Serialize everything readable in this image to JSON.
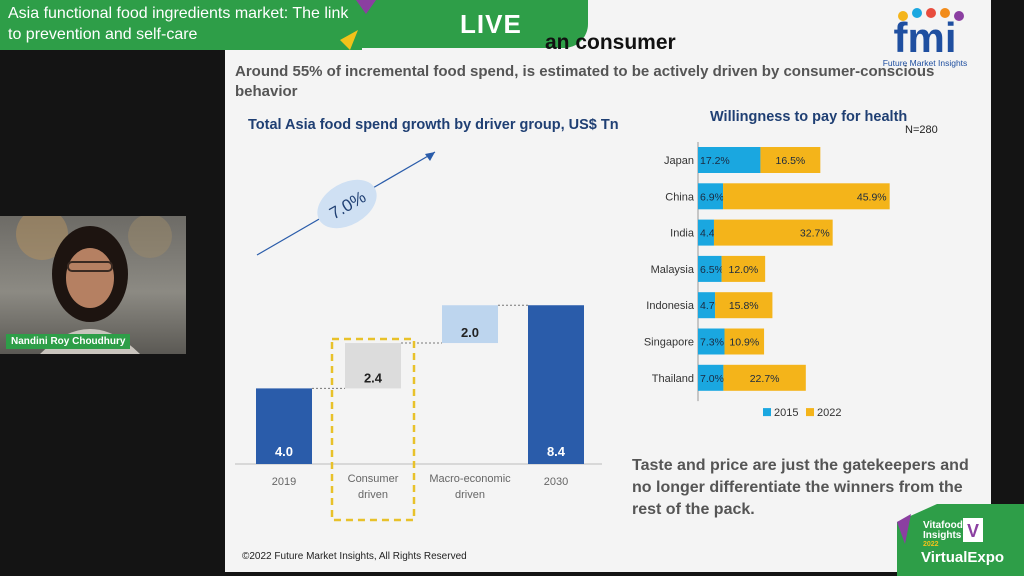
{
  "stream": {
    "title": "Asia functional food ingredients market: The link to prevention and self-care",
    "live_label": "LIVE",
    "presenter_name": "Nandini Roy Choudhury"
  },
  "slide": {
    "heading_visible": "an consumer",
    "subtitle": "Around 55% of incremental food spend, is estimated to be actively driven by consumer-conscious behavior",
    "logo_text": "fmi",
    "logo_subtext": "Future Market Insights",
    "takeaway": "Taste and price are just the gatekeepers and no longer differentiate the winners from the rest of the pack.",
    "copyright": "©2022 Future Market Insights, All Rights Reserved",
    "sponsor": {
      "line1": "Vitafoods",
      "line2": "Insights",
      "line3": "2022",
      "line4": "VirtualExpo"
    }
  },
  "colors": {
    "banner_green": "#2e9e48",
    "bar_blue": "#2a5caa",
    "light_blue": "#bdd5ee",
    "gray_bar": "#dcdcdc",
    "highlight_yellow": "#e8c12a",
    "series_2015": "#1aa7e0",
    "series_2022": "#f4b41a",
    "title_navy": "#1f3f73"
  },
  "chart_data": [
    {
      "type": "bar",
      "subtype": "waterfall",
      "title": "Total Asia food spend growth by driver group, US$ Tn",
      "categories": [
        "2019",
        "Consumer driven",
        "Macro-economic driven",
        "2030"
      ],
      "values": [
        4.0,
        2.4,
        2.0,
        8.4
      ],
      "value_labels": [
        "4.0",
        "2.4",
        "2.0",
        "8.4"
      ],
      "kinds": [
        "total",
        "increment",
        "increment",
        "total"
      ],
      "annotation": "7.0%",
      "highlight_category": "Consumer driven",
      "ylim": [
        0,
        9
      ]
    },
    {
      "type": "bar",
      "subtype": "horizontal-stacked",
      "title": "Willingness to pay for health",
      "note": "N=280",
      "categories": [
        "Japan",
        "China",
        "India",
        "Malaysia",
        "Indonesia",
        "Singapore",
        "Thailand"
      ],
      "series": [
        {
          "name": "2015",
          "values": [
            17.2,
            6.9,
            4.4,
            6.5,
            4.7,
            7.3,
            7.0
          ],
          "labels": [
            "17.2%",
            "6.9%",
            "4.4%",
            "6.5%",
            "4.7%",
            "7.3%",
            "7.0%"
          ]
        },
        {
          "name": "2022",
          "values": [
            16.5,
            45.9,
            32.7,
            12.0,
            15.8,
            10.9,
            22.7
          ],
          "labels": [
            "16.5%",
            "45.9%",
            "32.7%",
            "12.0%",
            "15.8%",
            "10.9%",
            "22.7%"
          ]
        }
      ],
      "legend_position": "bottom"
    }
  ]
}
